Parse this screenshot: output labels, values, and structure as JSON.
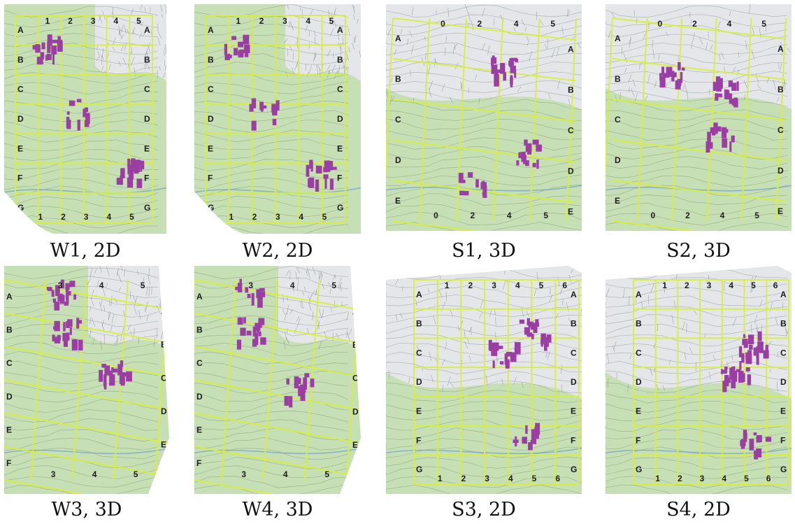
{
  "figure": {
    "panels": [
      {
        "id": "p1",
        "caption": "W1, 2D",
        "style": "2d-gentle",
        "rows": [
          "A",
          "B",
          "C",
          "D",
          "E",
          "F",
          "G"
        ],
        "cols": [
          "1",
          "2",
          "3",
          "4",
          "5"
        ],
        "mask": "map-outline-left"
      },
      {
        "id": "p2",
        "caption": "W2, 2D",
        "style": "2d-gentle",
        "rows": [
          "A",
          "B",
          "C",
          "D",
          "E",
          "F",
          "G"
        ],
        "cols": [
          "1",
          "2",
          "3",
          "4",
          "5"
        ],
        "mask": "map-outline-left"
      },
      {
        "id": "p3",
        "caption": "S1, 3D",
        "style": "3d-steep",
        "rows": [
          "A",
          "B",
          "C",
          "D",
          "E"
        ],
        "cols": [
          "0",
          "2",
          "4",
          "5"
        ],
        "mask": "full"
      },
      {
        "id": "p4",
        "caption": "S2, 3D",
        "style": "3d-steep",
        "rows": [
          "A",
          "B",
          "C",
          "D",
          "E"
        ],
        "cols": [
          "0",
          "2",
          "4",
          "5"
        ],
        "mask": "full"
      },
      {
        "id": "p5",
        "caption": "W3, 3D",
        "style": "3d-gentle",
        "rows": [
          "A",
          "B",
          "C",
          "D",
          "E",
          "F"
        ],
        "cols": [
          "3",
          "4",
          "5"
        ],
        "mask": "tilted"
      },
      {
        "id": "p6",
        "caption": "W4, 3D",
        "style": "3d-gentle",
        "rows": [
          "A",
          "B",
          "C",
          "D",
          "E",
          "F"
        ],
        "cols": [
          "3",
          "4",
          "5"
        ],
        "mask": "tilted"
      },
      {
        "id": "p7",
        "caption": "S3, 2D",
        "style": "2d-steep",
        "rows": [
          "A",
          "B",
          "C",
          "D",
          "E",
          "F",
          "G"
        ],
        "cols": [
          "1",
          "2",
          "3",
          "4",
          "5",
          "6"
        ],
        "mask": "map-outline-right"
      },
      {
        "id": "p8",
        "caption": "S4, 2D",
        "style": "2d-steep",
        "rows": [
          "A",
          "B",
          "C",
          "D",
          "E",
          "F",
          "G"
        ],
        "cols": [
          "1",
          "2",
          "3",
          "4",
          "5",
          "6"
        ],
        "mask": "map-outline-right"
      }
    ],
    "colors": {
      "vegetation": "#c6dfb4",
      "rock": "#e4e6ea",
      "grid": "#d8ef3a",
      "marker": "#9b3ea3",
      "contour": "#7d8f78"
    }
  }
}
